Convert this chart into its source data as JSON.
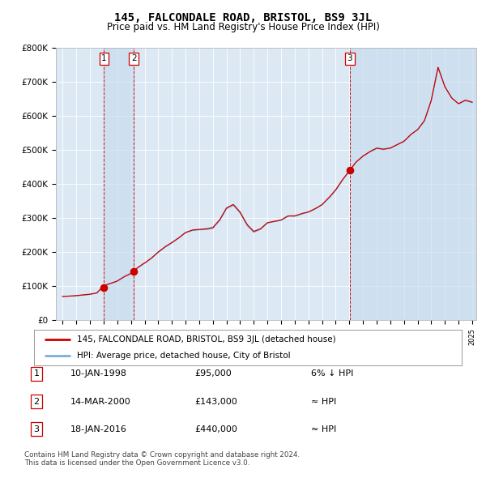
{
  "title": "145, FALCONDALE ROAD, BRISTOL, BS9 3JL",
  "subtitle": "Price paid vs. HM Land Registry's House Price Index (HPI)",
  "hpi_color": "#7ab0d4",
  "price_color": "#cc0000",
  "dot_color": "#cc0000",
  "bg_color": "#ffffff",
  "plot_bg_color": "#dce9f5",
  "grid_color": "#ffffff",
  "ylim": [
    0,
    800000
  ],
  "yticks": [
    0,
    100000,
    200000,
    300000,
    400000,
    500000,
    600000,
    700000,
    800000
  ],
  "ytick_labels": [
    "£0",
    "£100K",
    "£200K",
    "£300K",
    "£400K",
    "£500K",
    "£600K",
    "£700K",
    "£800K"
  ],
  "sale1_date": "10-JAN-1998",
  "sale1_price": 95000,
  "sale1_label": "6% ↓ HPI",
  "sale2_date": "14-MAR-2000",
  "sale2_price": 143000,
  "sale2_label": "≈ HPI",
  "sale3_date": "18-JAN-2016",
  "sale3_price": 440000,
  "sale3_label": "≈ HPI",
  "legend_line1": "145, FALCONDALE ROAD, BRISTOL, BS9 3JL (detached house)",
  "legend_line2": "HPI: Average price, detached house, City of Bristol",
  "footnote1": "Contains HM Land Registry data © Crown copyright and database right 2024.",
  "footnote2": "This data is licensed under the Open Government Licence v3.0.",
  "sale1_x": 1998.03,
  "sale2_x": 2000.21,
  "sale3_x": 2016.04
}
